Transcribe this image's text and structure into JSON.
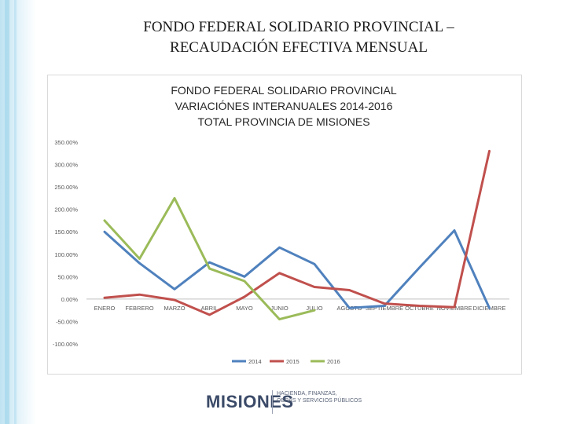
{
  "slide": {
    "title_line1": "FONDO FEDERAL SOLIDARIO PROVINCIAL –",
    "title_line2": "RECAUDACIÓN EFECTIVA MENSUAL"
  },
  "chart_data": {
    "type": "line",
    "title": [
      "FONDO FEDERAL SOLIDARIO PROVINCIAL",
      "VARIACIÓNES INTERANUALES 2014-2016",
      "TOTAL PROVINCIA DE MISIONES"
    ],
    "categories": [
      "ENERO",
      "FEBRERO",
      "MARZO",
      "ABRIL",
      "MAYO",
      "JUNIO",
      "JULIO",
      "AGOSTO",
      "SEPTIEMBRE",
      "OCTUBRE",
      "NOVIEMBRE",
      "DICIEMBRE"
    ],
    "y_ticks": [
      "350.00%",
      "300.00%",
      "250.00%",
      "200.00%",
      "150.00%",
      "100.00%",
      "50.00%",
      "0.00%",
      "-50.00%",
      "-100.00%"
    ],
    "ylim": [
      -100,
      350
    ],
    "grid": false,
    "legend_position": "bottom",
    "series": [
      {
        "name": "2014",
        "color": "#4f81bd",
        "values": [
          150,
          80,
          22,
          82,
          50,
          115,
          78,
          -20,
          -15,
          70,
          153,
          -20
        ]
      },
      {
        "name": "2015",
        "color": "#c0504d",
        "values": [
          3,
          10,
          -2,
          -35,
          5,
          58,
          27,
          20,
          -10,
          -15,
          -18,
          330
        ]
      },
      {
        "name": "2016",
        "color": "#9bbb59",
        "values": [
          175,
          90,
          225,
          68,
          40,
          -45,
          -25,
          null,
          null,
          null,
          null,
          null
        ]
      }
    ]
  },
  "logo": {
    "word": "MISIONES",
    "line1": "HACIENDA, FINANZAS,",
    "line2": "OBRAS Y SERVICIOS PÚBLICOS"
  }
}
